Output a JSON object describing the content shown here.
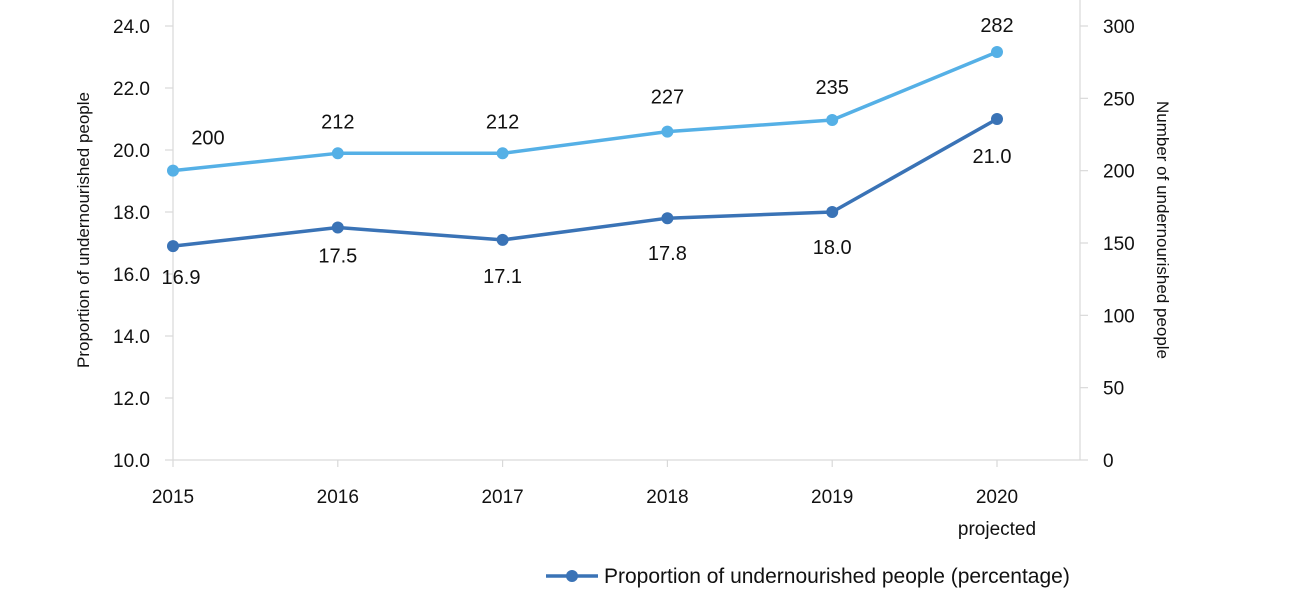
{
  "chart_data": {
    "type": "line",
    "categories": [
      "2015",
      "2016",
      "2017",
      "2018",
      "2019",
      "2020"
    ],
    "category_sublabels": [
      "",
      "",
      "",
      "",
      "",
      "projected"
    ],
    "y_left": {
      "label": "Proportion of undernourished people",
      "lim": [
        10.0,
        24.0
      ],
      "ticks": [
        "10.0",
        "12.0",
        "14.0",
        "16.0",
        "18.0",
        "20.0",
        "22.0",
        "24.0"
      ]
    },
    "y_right": {
      "label": "Number of undernourished people",
      "lim": [
        0,
        300
      ],
      "ticks": [
        "0",
        "50",
        "100",
        "150",
        "200",
        "250",
        "300"
      ]
    },
    "series": [
      {
        "name": "Proportion of undernourished people (percentage)",
        "axis": "left",
        "color": "#3a73b6",
        "values": [
          16.9,
          17.5,
          17.1,
          17.8,
          18.0,
          21.0
        ],
        "labels": [
          "16.9",
          "17.5",
          "17.1",
          "17.8",
          "18.0",
          "21.0"
        ]
      },
      {
        "axis": "right",
        "color": "#55b0e6",
        "values": [
          200,
          212,
          212,
          227,
          235,
          282
        ],
        "labels": [
          "200",
          "212",
          "212",
          "227",
          "235",
          "282"
        ]
      }
    ],
    "legend": "bottom-right",
    "grid": false
  }
}
